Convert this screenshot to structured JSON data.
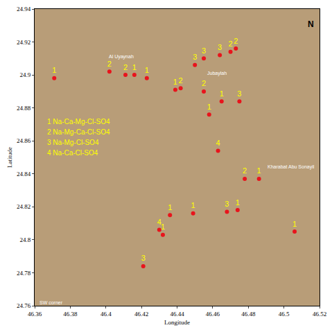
{
  "chart_data": {
    "type": "scatter",
    "x_label": "Longitude",
    "y_label": "Latitude",
    "xlim": [
      46.36,
      46.52
    ],
    "ylim": [
      24.76,
      24.94
    ],
    "xticks": [
      46.36,
      46.38,
      46.4,
      46.42,
      46.44,
      46.46,
      46.48,
      46.5,
      46.52
    ],
    "yticks": [
      24.76,
      24.78,
      24.8,
      24.82,
      24.84,
      24.86,
      24.88,
      24.9,
      24.92,
      24.94
    ],
    "grid": false,
    "color": "#e8141c",
    "label_color": "#ffff00",
    "marker": "circle",
    "x": [
      46.371,
      46.402,
      46.411,
      46.416,
      46.423,
      46.439,
      46.442,
      46.45,
      46.455,
      46.464,
      46.47,
      46.473,
      46.455,
      46.465,
      46.475,
      46.458,
      46.463,
      46.478,
      46.486,
      46.436,
      46.449,
      46.468,
      46.474,
      46.506,
      46.43,
      46.432,
      46.421
    ],
    "values": [
      24.898,
      24.902,
      24.9,
      24.9,
      24.898,
      24.891,
      24.892,
      24.906,
      24.91,
      24.912,
      24.914,
      24.916,
      24.89,
      24.884,
      24.884,
      24.876,
      24.854,
      24.837,
      24.837,
      24.815,
      24.816,
      24.817,
      24.818,
      24.805,
      24.806,
      24.803,
      24.784
    ],
    "point_labels": [
      "1",
      "2",
      "2",
      "1",
      "1",
      "1",
      "2",
      "3",
      "3",
      "3",
      "2",
      "2",
      "2",
      "1",
      "3",
      "1",
      "4",
      "2",
      "1",
      "1",
      "1",
      "3",
      "1",
      "1",
      "4",
      "1",
      "3"
    ],
    "legend_text": [
      "1 Na-Ca-Mg-Cl-SO4",
      "2 Na-Mg-Ca-Cl-SO4",
      "3 Na-Mg-Cl-SO4",
      "4 Na-Ca-Cl-SO4"
    ],
    "places": [
      {
        "text": "Al Uyaynah",
        "x": 46.401,
        "y": 24.911
      },
      {
        "text": "Jubaylah",
        "x": 46.456,
        "y": 24.901
      },
      {
        "text": "Kharabat Abu Sonayil",
        "x": 46.49,
        "y": 24.844
      },
      {
        "text": "SW corner",
        "x": 46.362,
        "y": 24.762
      }
    ],
    "north": "N"
  }
}
